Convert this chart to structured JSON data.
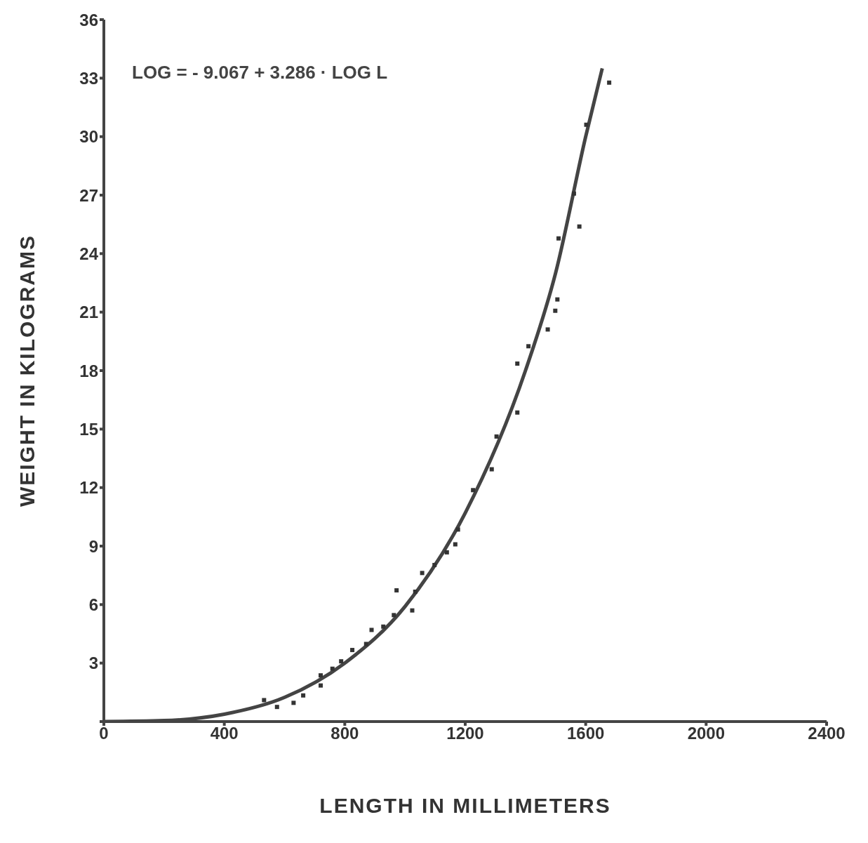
{
  "chart_data": {
    "type": "scatter",
    "xlabel": "LENGTH  IN  MILLIMETERS",
    "ylabel": "WEIGHT  IN  KILOGRAMS",
    "annotations": [
      "LOG = - 9.067 + 3.286 · LOG  L"
    ],
    "xlim": [
      0,
      2400
    ],
    "xticks": [
      0,
      400,
      800,
      1200,
      1600,
      2000,
      2400
    ],
    "ylim": [
      0,
      36
    ],
    "yticks": [
      {
        "value": 0,
        "label": null
      },
      3,
      6,
      9,
      12,
      15,
      18,
      21,
      24,
      27,
      30,
      33,
      36
    ],
    "grid": false,
    "legend": false,
    "marker": "square",
    "series": [
      {
        "type": "scatter",
        "color": "#333333",
        "x": [
          532,
          575,
          630,
          662,
          720,
          720,
          759,
          788,
          825,
          871,
          889,
          928,
          963,
          972,
          1024,
          1034,
          1057,
          1098,
          1139,
          1167,
          1176,
          1226,
          1288,
          1304,
          1373,
          1373,
          1410,
          1474,
          1499,
          1506,
          1510,
          1561,
          1579,
          1602,
          1678
        ],
        "values": [
          1.1,
          0.75,
          0.96,
          1.34,
          1.85,
          2.37,
          2.71,
          3.09,
          3.67,
          3.98,
          4.7,
          4.87,
          5.46,
          6.73,
          5.7,
          6.66,
          7.62,
          8.03,
          8.68,
          9.09,
          9.85,
          11.87,
          12.94,
          14.62,
          15.85,
          18.36,
          19.25,
          20.11,
          21.07,
          21.65,
          24.78,
          27.08,
          25.39,
          30.61,
          32.77
        ]
      },
      {
        "type": "line",
        "color": "#444444",
        "line_style": "solid",
        "marker": "none",
        "x": [
          0,
          200,
          400,
          600,
          800,
          1000,
          1200,
          1400,
          1500,
          1600,
          1655
        ],
        "values": [
          0,
          0.05,
          0.38,
          1.24,
          3.0,
          5.9,
          10.7,
          18.0,
          23.0,
          30.0,
          33.5
        ]
      }
    ]
  }
}
